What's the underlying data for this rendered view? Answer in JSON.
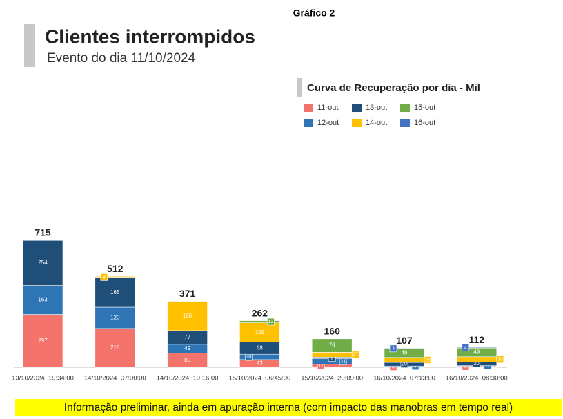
{
  "header": "Gráfico 2",
  "chart_data": {
    "type": "bar",
    "stacked": true,
    "title": "Clientes interrompidos",
    "subtitle": "Evento do dia 11/10/2024",
    "legend_title": "Curva de Recuperação por dia - Mil",
    "categories": [
      "13/10/2024  19:34:00",
      "14/10/2024  07:00:00",
      "14/10/2024  19:16:00",
      "15/10/2024  06:45:00",
      "15/10/2024  20:09:00",
      "16/10/2024  07:13:00",
      "16/10/2024  08:30:00"
    ],
    "totals": [
      715,
      512,
      371,
      262,
      160,
      107,
      112
    ],
    "series": [
      {
        "name": "11-out",
        "color": "#f4736b",
        "values": [
          297,
          218,
          80,
          43,
          17,
          3,
          6
        ]
      },
      {
        "name": "12-out",
        "color": "#2e75b6",
        "values": [
          163,
          120,
          49,
          30,
          31,
          4,
          3
        ]
      },
      {
        "name": "13-out",
        "color": "#1f4e79",
        "values": [
          254,
          165,
          77,
          68,
          9,
          20,
          20
        ]
      },
      {
        "name": "14-out",
        "color": "#ffc000",
        "values": [
          null,
          9,
          165,
          109,
          27,
          28,
          30
        ]
      },
      {
        "name": "15-out",
        "color": "#70ad47",
        "values": [
          null,
          null,
          null,
          12,
          76,
          49,
          49
        ]
      },
      {
        "name": "16-out",
        "color": "#4472c4",
        "values": [
          null,
          null,
          null,
          null,
          null,
          3,
          4
        ]
      }
    ]
  },
  "footnote": "Informação preliminar, ainda em apuração interna (com impacto das manobras em tempo real)"
}
